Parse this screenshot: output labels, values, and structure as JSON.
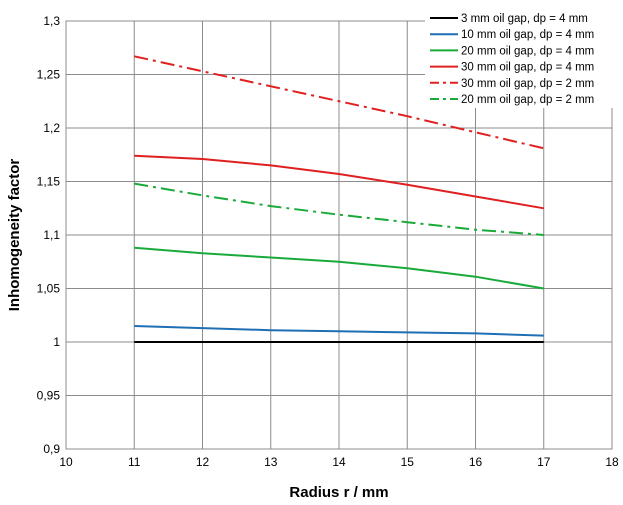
{
  "chart_data": {
    "type": "line",
    "title": "",
    "xlabel": "Radius r  /  mm",
    "ylabel": "Inhomogeneity factor",
    "xlim": [
      10,
      18
    ],
    "ylim": [
      0.9,
      1.3
    ],
    "xticks": [
      10,
      11,
      12,
      13,
      14,
      15,
      16,
      17,
      18
    ],
    "yticks": [
      0.9,
      0.95,
      1.0,
      1.05,
      1.1,
      1.15,
      1.2,
      1.25,
      1.3
    ],
    "xtick_labels": [
      "10",
      "11",
      "12",
      "13",
      "14",
      "15",
      "16",
      "17",
      "18"
    ],
    "ytick_labels": [
      "0,9",
      "0,95",
      "1",
      "1,05",
      "1,1",
      "1,15",
      "1,2",
      "1,25",
      "1,3"
    ],
    "grid": true,
    "legend_position": "top-right",
    "series": [
      {
        "name": "3 mm oil gap, dp = 4 mm",
        "color": "#000000",
        "dash": "solid",
        "x": [
          11,
          12,
          13,
          14,
          15,
          16,
          17
        ],
        "y": [
          1.0,
          1.0,
          1.0,
          1.0,
          1.0,
          1.0,
          1.0
        ]
      },
      {
        "name": "10 mm oil gap, dp = 4 mm",
        "color": "#1f6fb5",
        "dash": "solid",
        "x": [
          11,
          12,
          13,
          14,
          15,
          16,
          17
        ],
        "y": [
          1.015,
          1.013,
          1.011,
          1.01,
          1.009,
          1.008,
          1.006
        ]
      },
      {
        "name": "20 mm oil gap, dp = 4 mm",
        "color": "#1aaa3a",
        "dash": "solid",
        "x": [
          11,
          12,
          13,
          14,
          15,
          16,
          17
        ],
        "y": [
          1.088,
          1.083,
          1.079,
          1.075,
          1.069,
          1.061,
          1.05
        ]
      },
      {
        "name": "30 mm oil gap, dp = 4 mm",
        "color": "#e02020",
        "dash": "solid",
        "x": [
          11,
          12,
          13,
          14,
          15,
          16,
          17
        ],
        "y": [
          1.174,
          1.171,
          1.165,
          1.157,
          1.147,
          1.136,
          1.125
        ]
      },
      {
        "name": "30 mm oil gap, dp = 2 mm",
        "color": "#e02020",
        "dash": "dashdot",
        "x": [
          11,
          12,
          13,
          14,
          15,
          16,
          17
        ],
        "y": [
          1.267,
          1.253,
          1.239,
          1.225,
          1.211,
          1.196,
          1.181
        ]
      },
      {
        "name": "20 mm oil gap, dp = 2 mm",
        "color": "#1aaa3a",
        "dash": "dashdot",
        "x": [
          11,
          12,
          13,
          14,
          15,
          16,
          17
        ],
        "y": [
          1.148,
          1.137,
          1.127,
          1.119,
          1.112,
          1.105,
          1.1
        ]
      }
    ]
  }
}
